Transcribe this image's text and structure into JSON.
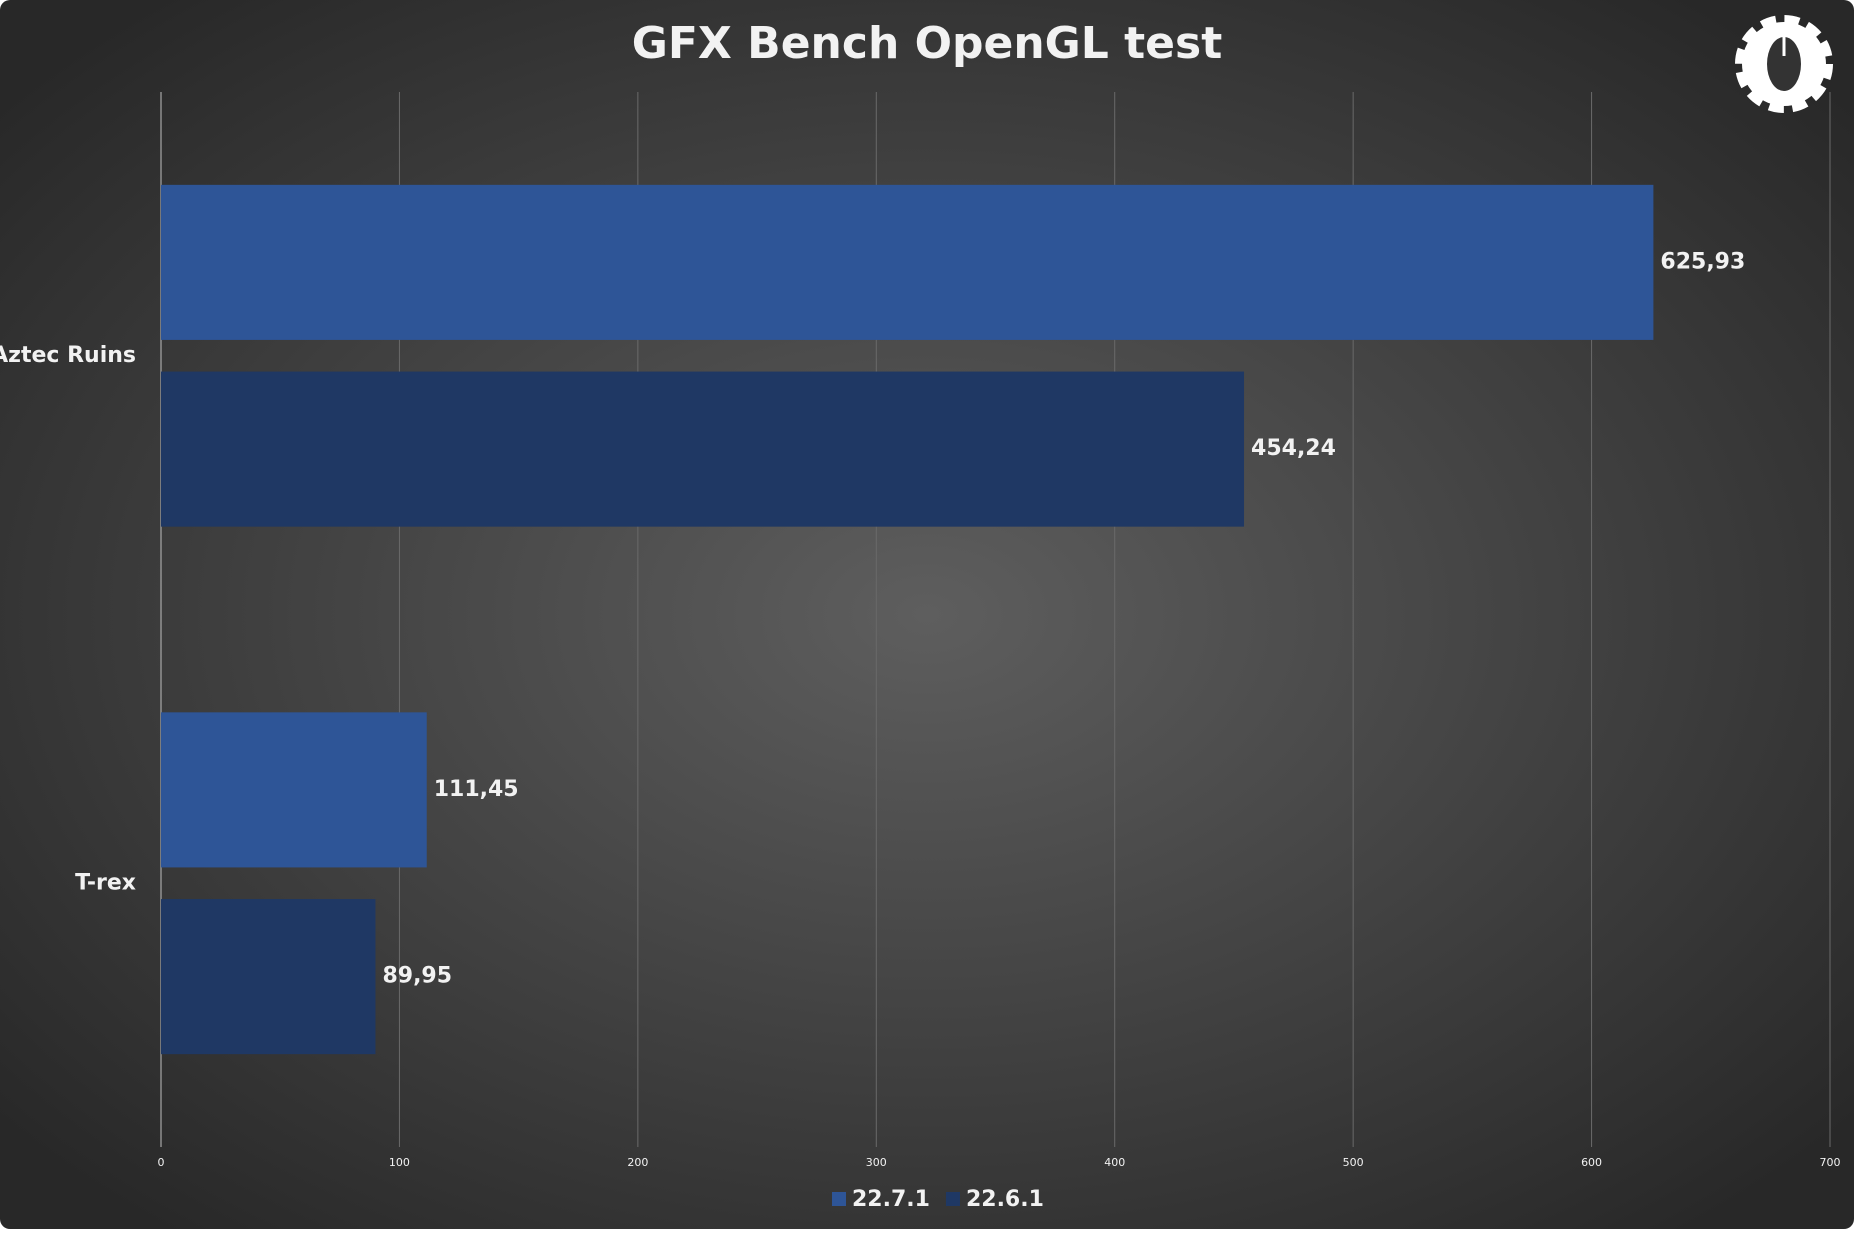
{
  "chart_data": {
    "type": "barh",
    "title": "GFX Bench OpenGL test",
    "categories": [
      "Aztec Ruins",
      "T-rex"
    ],
    "series": [
      {
        "name": "22.7.1",
        "color": "#2e5597",
        "values": [
          625.93,
          111.45
        ],
        "value_labels": [
          "625,93",
          "111,45"
        ]
      },
      {
        "name": "22.6.1",
        "color": "#1f3864",
        "values": [
          454.24,
          89.95
        ],
        "value_labels": [
          "454,24",
          "89,95"
        ]
      }
    ],
    "xlim": [
      0,
      700
    ],
    "xticks": [
      0,
      100,
      200,
      300,
      400,
      500,
      600,
      700
    ],
    "grid": true,
    "legend": "bottom"
  }
}
